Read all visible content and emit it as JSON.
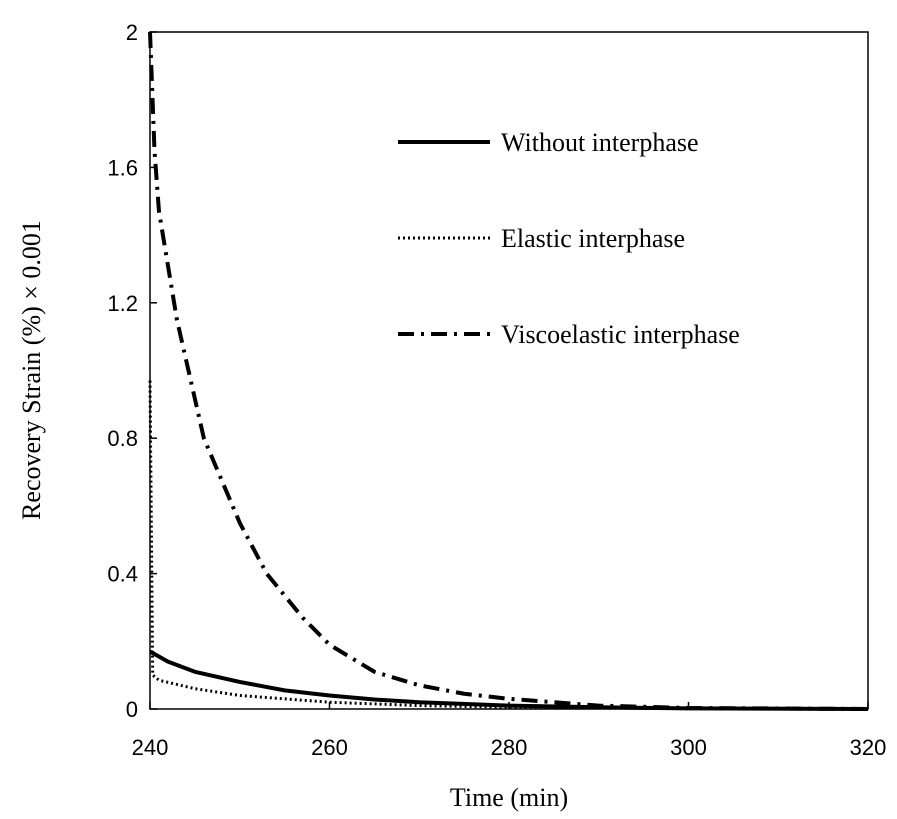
{
  "chart_data": {
    "type": "line",
    "xlabel": "Time (min)",
    "ylabel": "Recovery Strain (%) × 0.001",
    "xlim": [
      240,
      320
    ],
    "xticks": [
      240,
      260,
      280,
      300,
      320
    ],
    "ylim": [
      0,
      2
    ],
    "yticks": [
      0,
      0.4,
      0.8,
      1.2,
      1.6,
      2
    ],
    "grid": false,
    "legend": "upper right",
    "series": [
      {
        "name": "Without interphase",
        "color": "#000000",
        "style": "solid",
        "x": [
          240,
          242,
          245,
          250,
          255,
          260,
          265,
          270,
          280,
          290,
          300,
          320
        ],
        "values": [
          0.17,
          0.14,
          0.11,
          0.08,
          0.055,
          0.04,
          0.028,
          0.02,
          0.01,
          0.005,
          0.002,
          0
        ]
      },
      {
        "name": "Elastic interphase",
        "color": "#000000",
        "style": "dotted",
        "x": [
          240,
          240.3,
          241,
          245,
          250,
          260,
          270,
          280,
          300,
          320
        ],
        "values": [
          0.97,
          0.1,
          0.085,
          0.06,
          0.04,
          0.02,
          0.01,
          0.005,
          0.001,
          0
        ]
      },
      {
        "name": "Viscoelastic interphase",
        "color": "#000000",
        "style": "dashdot",
        "x": [
          240,
          240.5,
          241,
          243,
          246,
          250,
          253,
          257,
          260,
          265,
          270,
          275,
          280,
          290,
          300,
          320
        ],
        "values": [
          2,
          1.65,
          1.47,
          1.15,
          0.8,
          0.55,
          0.4,
          0.27,
          0.19,
          0.11,
          0.07,
          0.045,
          0.03,
          0.01,
          0.003,
          0
        ]
      }
    ]
  }
}
